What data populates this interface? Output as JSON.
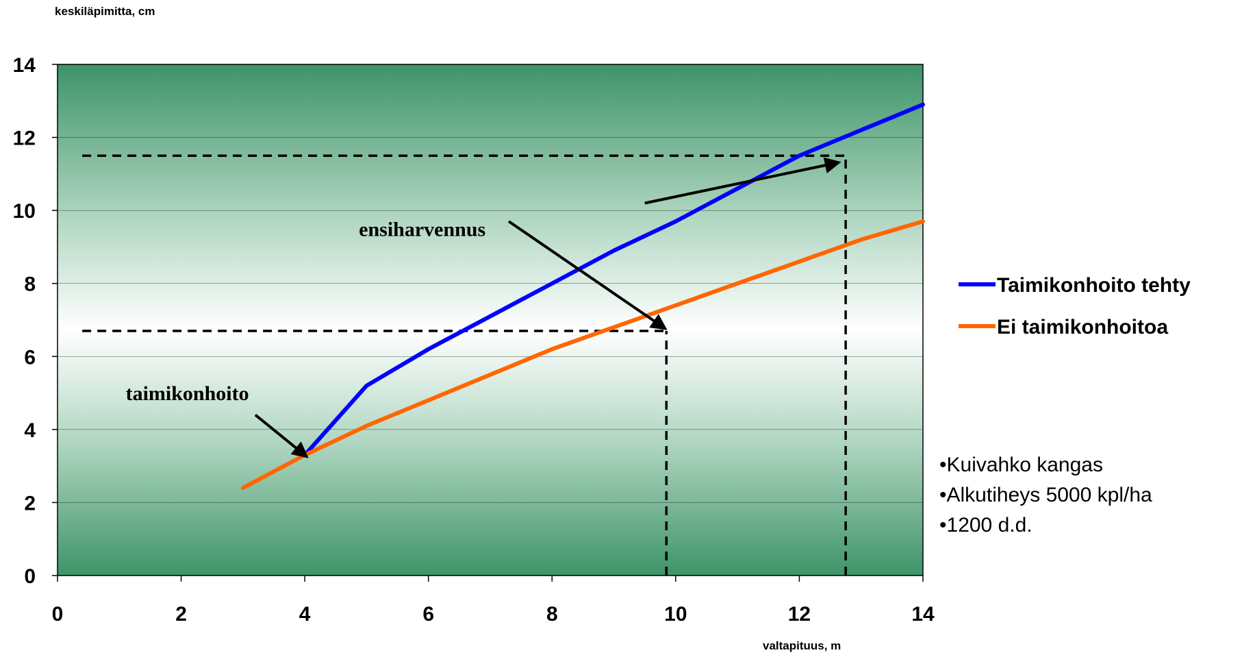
{
  "chart_data": {
    "type": "line",
    "ylabel": "keskiläpimitta, cm",
    "xlabel": "valtapituus, m",
    "xlim": [
      0,
      14
    ],
    "ylim": [
      0,
      14
    ],
    "x_ticks": [
      "0",
      "2",
      "4",
      "6",
      "8",
      "10",
      "12",
      "14"
    ],
    "y_ticks": [
      "0",
      "2",
      "4",
      "6",
      "8",
      "10",
      "12",
      "14"
    ],
    "grid": "horizontal",
    "legend_position": "right",
    "series": [
      {
        "name": "Taimikonhoito tehty",
        "color": "#0000ff",
        "points": [
          [
            4,
            3.3
          ],
          [
            5,
            5.2
          ],
          [
            6,
            6.2
          ],
          [
            7,
            7.1
          ],
          [
            8,
            8.0
          ],
          [
            9,
            8.9
          ],
          [
            10,
            9.7
          ],
          [
            11,
            10.6
          ],
          [
            12,
            11.5
          ],
          [
            13,
            12.2
          ],
          [
            14,
            12.9
          ]
        ]
      },
      {
        "name": "Ei taimikonhoitoa",
        "color": "#ff6600",
        "points": [
          [
            3,
            2.4
          ],
          [
            4,
            3.3
          ],
          [
            5,
            4.1
          ],
          [
            6,
            4.8
          ],
          [
            7,
            5.5
          ],
          [
            8,
            6.2
          ],
          [
            9,
            6.8
          ],
          [
            10,
            7.4
          ],
          [
            11,
            8.0
          ],
          [
            12,
            8.6
          ],
          [
            13,
            9.2
          ],
          [
            14,
            9.7
          ]
        ]
      }
    ],
    "reference_lines": [
      {
        "type": "horizontal",
        "y": 6.7,
        "x_from": 0.4,
        "x_to": 9.85
      },
      {
        "type": "vertical",
        "x": 9.85,
        "y_from": 0,
        "y_to": 6.7
      },
      {
        "type": "horizontal",
        "y": 11.5,
        "x_from": 0.4,
        "x_to": 12.75
      },
      {
        "type": "vertical",
        "x": 12.75,
        "y_from": 0,
        "y_to": 11.5
      }
    ],
    "annotations": [
      {
        "text": "taimikonhoito",
        "text_at": [
          2.1,
          4.8
        ],
        "arrows": [
          {
            "from": [
              3.2,
              4.4
            ],
            "to": [
              4.0,
              3.3
            ]
          }
        ]
      },
      {
        "text": "ensiharvennus",
        "text_at": [
          5.9,
          9.3
        ],
        "arrows": [
          {
            "from": [
              9.5,
              10.2
            ],
            "to": [
              12.6,
              11.3
            ]
          },
          {
            "from": [
              7.3,
              9.7
            ],
            "to": [
              9.8,
              6.8
            ]
          }
        ]
      }
    ],
    "notes": [
      "•Kuivahko kangas",
      "•Alkutiheys 5000 kpl/ha",
      "•1200 d.d."
    ]
  }
}
